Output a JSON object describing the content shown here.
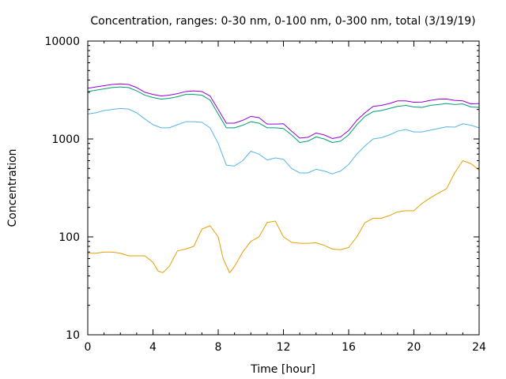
{
  "chart_data": {
    "type": "line",
    "title": "Concentration, ranges: 0-30 nm, 0-100 nm, 0-300 nm, total (3/19/19)",
    "xlabel": "Time [hour]",
    "ylabel": "Concentration",
    "xlim": [
      0,
      24
    ],
    "ylim": [
      10,
      10000
    ],
    "yscale": "log",
    "grid": false,
    "legend": "none",
    "xticks": [
      0,
      4,
      8,
      12,
      16,
      20,
      24
    ],
    "yticks": [
      10,
      100,
      1000,
      10000
    ],
    "series": [
      {
        "color": "#e69f00",
        "x": [
          0,
          0.5,
          1,
          1.5,
          2,
          2.5,
          3,
          3.5,
          4,
          4.3,
          4.6,
          5,
          5.5,
          6,
          6.5,
          7,
          7.5,
          8,
          8.3,
          8.7,
          9,
          9.5,
          10,
          10.5,
          11,
          11.5,
          12,
          12.5,
          13,
          13.5,
          14,
          14.5,
          15,
          15.5,
          16,
          16.5,
          17,
          17.5,
          18,
          18.5,
          19,
          19.5,
          20,
          20.5,
          21,
          21.5,
          22,
          22.5,
          23,
          23.5,
          24
        ],
        "values": [
          68,
          68,
          70,
          70,
          68,
          64,
          64,
          64,
          55,
          45,
          43,
          50,
          72,
          75,
          80,
          120,
          130,
          100,
          60,
          43,
          50,
          70,
          90,
          100,
          140,
          145,
          100,
          88,
          86,
          86,
          87,
          82,
          75,
          74,
          78,
          100,
          140,
          155,
          155,
          165,
          180,
          185,
          185,
          220,
          250,
          280,
          310,
          450,
          600,
          560,
          480
        ]
      },
      {
        "color": "#56b4e9",
        "x": [
          0,
          0.5,
          1,
          1.5,
          2,
          2.5,
          3,
          3.5,
          4,
          4.5,
          5,
          5.5,
          6,
          6.5,
          7,
          7.5,
          8,
          8.5,
          9,
          9.5,
          10,
          10.5,
          11,
          11.5,
          12,
          12.5,
          13,
          13.5,
          14,
          14.5,
          15,
          15.5,
          16,
          16.5,
          17,
          17.5,
          18,
          18.5,
          19,
          19.5,
          20,
          20.5,
          21,
          21.5,
          22,
          22.5,
          23,
          23.5,
          24
        ],
        "values": [
          1800,
          1850,
          1950,
          2000,
          2050,
          2020,
          1850,
          1600,
          1400,
          1300,
          1300,
          1400,
          1500,
          1500,
          1480,
          1300,
          900,
          540,
          530,
          600,
          750,
          700,
          610,
          640,
          620,
          500,
          450,
          450,
          490,
          470,
          440,
          470,
          550,
          700,
          850,
          1000,
          1030,
          1100,
          1200,
          1250,
          1180,
          1180,
          1230,
          1280,
          1330,
          1320,
          1430,
          1380,
          1300
        ]
      },
      {
        "color": "#009e73",
        "x": [
          0,
          0.5,
          1,
          1.5,
          2,
          2.5,
          3,
          3.5,
          4,
          4.5,
          5,
          5.5,
          6,
          6.5,
          7,
          7.5,
          8,
          8.5,
          9,
          9.5,
          10,
          10.5,
          11,
          11.5,
          12,
          12.5,
          13,
          13.5,
          14,
          14.5,
          15,
          15.5,
          16,
          16.5,
          17,
          17.5,
          18,
          18.5,
          19,
          19.5,
          20,
          20.5,
          21,
          21.5,
          22,
          22.5,
          23,
          23.5,
          24
        ],
        "values": [
          3050,
          3150,
          3250,
          3350,
          3400,
          3350,
          3100,
          2800,
          2650,
          2550,
          2600,
          2700,
          2850,
          2850,
          2800,
          2500,
          1800,
          1300,
          1300,
          1380,
          1500,
          1450,
          1300,
          1300,
          1280,
          1100,
          920,
          950,
          1050,
          1000,
          920,
          950,
          1100,
          1400,
          1700,
          1900,
          1950,
          2050,
          2150,
          2200,
          2120,
          2100,
          2200,
          2250,
          2300,
          2250,
          2280,
          2120,
          2100
        ]
      },
      {
        "color": "#9400d3",
        "x": [
          0,
          0.5,
          1,
          1.5,
          2,
          2.5,
          3,
          3.5,
          4,
          4.5,
          5,
          5.5,
          6,
          6.5,
          7,
          7.5,
          8,
          8.5,
          9,
          9.5,
          10,
          10.5,
          11,
          11.5,
          12,
          12.5,
          13,
          13.5,
          14,
          14.5,
          15,
          15.5,
          16,
          16.5,
          17,
          17.5,
          18,
          18.5,
          19,
          19.5,
          20,
          20.5,
          21,
          21.5,
          22,
          22.5,
          23,
          23.5,
          24
        ],
        "values": [
          3300,
          3400,
          3500,
          3600,
          3650,
          3600,
          3350,
          3000,
          2850,
          2750,
          2800,
          2900,
          3050,
          3100,
          3050,
          2750,
          2000,
          1450,
          1450,
          1550,
          1700,
          1650,
          1420,
          1420,
          1430,
          1200,
          1020,
          1040,
          1150,
          1100,
          1010,
          1050,
          1220,
          1550,
          1850,
          2150,
          2200,
          2300,
          2450,
          2450,
          2370,
          2380,
          2480,
          2550,
          2560,
          2480,
          2450,
          2280,
          2300
        ]
      }
    ]
  }
}
